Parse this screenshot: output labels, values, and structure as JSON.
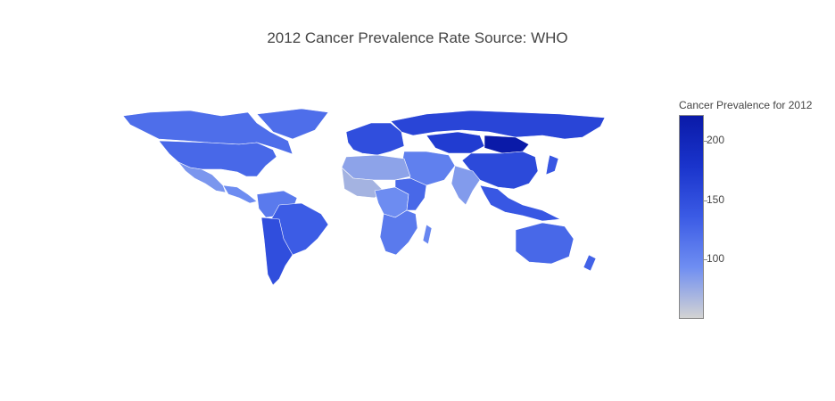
{
  "title": "2012 Cancer Prevalence Rate Source: WHO",
  "colorbar": {
    "title": "Cancer Prevalence for 2012",
    "ticks": [
      {
        "label": "200",
        "value": 200
      },
      {
        "label": "150",
        "value": 150
      },
      {
        "label": "100",
        "value": 100
      }
    ],
    "min": 50,
    "max": 222,
    "colors": [
      "#d3d3d3",
      "#6f8ef2",
      "#3b5be5",
      "#1a34cc",
      "#0a1aa8"
    ]
  },
  "regions": [
    {
      "id": "north-america-canada",
      "value": 120
    },
    {
      "id": "usa",
      "value": 125
    },
    {
      "id": "mexico",
      "value": 88
    },
    {
      "id": "central-america",
      "value": 95
    },
    {
      "id": "greenland",
      "value": 120
    },
    {
      "id": "south-america-north",
      "value": 110
    },
    {
      "id": "brazil",
      "value": 135
    },
    {
      "id": "south-america-south",
      "value": 150
    },
    {
      "id": "europe",
      "value": 150
    },
    {
      "id": "russia",
      "value": 160
    },
    {
      "id": "kazakhstan",
      "value": 170
    },
    {
      "id": "mongolia",
      "value": 222
    },
    {
      "id": "china",
      "value": 155
    },
    {
      "id": "india",
      "value": 85
    },
    {
      "id": "middle-east",
      "value": 105
    },
    {
      "id": "north-africa",
      "value": 80
    },
    {
      "id": "west-africa",
      "value": 70
    },
    {
      "id": "central-africa",
      "value": 95
    },
    {
      "id": "east-africa",
      "value": 125
    },
    {
      "id": "zimbabwe",
      "value": 215
    },
    {
      "id": "southern-africa",
      "value": 110
    },
    {
      "id": "southeast-asia",
      "value": 140
    },
    {
      "id": "australia",
      "value": 125
    },
    {
      "id": "new-zealand",
      "value": 130
    },
    {
      "id": "japan",
      "value": 140
    },
    {
      "id": "madagascar",
      "value": 100
    }
  ]
}
